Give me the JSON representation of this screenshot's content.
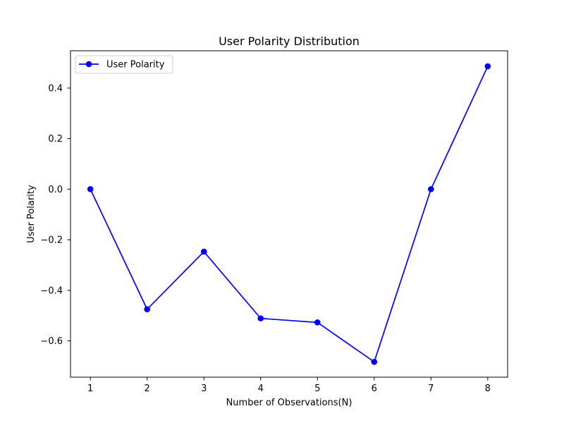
{
  "chart_data": {
    "type": "line",
    "title": "User Polarity Distribution",
    "xlabel": "Number of Observations(N)",
    "ylabel": "User Polarity",
    "x": [
      1,
      2,
      3,
      4,
      5,
      6,
      7,
      8
    ],
    "x_ticks": [
      "1",
      "2",
      "3",
      "4",
      "5",
      "6",
      "7",
      "8"
    ],
    "y_ticks": [
      0.4,
      0.2,
      0.0,
      -0.2,
      -0.4,
      -0.6
    ],
    "y_tick_labels": [
      "0.4",
      "0.2",
      "0.0",
      "−0.2",
      "−0.4",
      "−0.6"
    ],
    "xlim": [
      0.65,
      8.35
    ],
    "ylim": [
      -0.7435,
      0.5475
    ],
    "grid": false,
    "legend_position": "upper left",
    "series": [
      {
        "name": "User Polarity",
        "color": "#0000ff",
        "marker": "circle",
        "values": [
          0.0,
          -0.475,
          -0.247,
          -0.511,
          -0.527,
          -0.683,
          0.0,
          0.486
        ]
      }
    ]
  }
}
